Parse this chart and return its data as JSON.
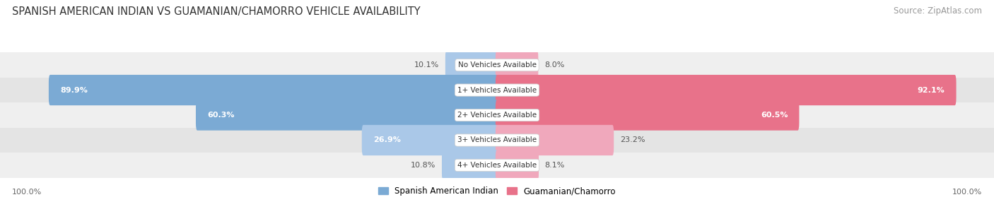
{
  "title": "SPANISH AMERICAN INDIAN VS GUAMANIAN/CHAMORRO VEHICLE AVAILABILITY",
  "source": "Source: ZipAtlas.com",
  "categories": [
    "No Vehicles Available",
    "1+ Vehicles Available",
    "2+ Vehicles Available",
    "3+ Vehicles Available",
    "4+ Vehicles Available"
  ],
  "left_values": [
    10.1,
    89.9,
    60.3,
    26.9,
    10.8
  ],
  "right_values": [
    8.0,
    92.1,
    60.5,
    23.2,
    8.1
  ],
  "left_color": "#7baad4",
  "right_color": "#e8728a",
  "left_color_light": "#aac8e8",
  "right_color_light": "#f0a8bc",
  "left_label": "Spanish American Indian",
  "right_label": "Guamanian/Chamorro",
  "bg_even_color": "#efefef",
  "bg_odd_color": "#e4e4e4",
  "max_value": 100.0,
  "bar_height": 0.62,
  "title_fontsize": 10.5,
  "source_fontsize": 8.5,
  "value_fontsize": 8.0,
  "cat_label_fontsize": 7.5,
  "footer_fontsize": 8.0,
  "legend_fontsize": 8.5
}
